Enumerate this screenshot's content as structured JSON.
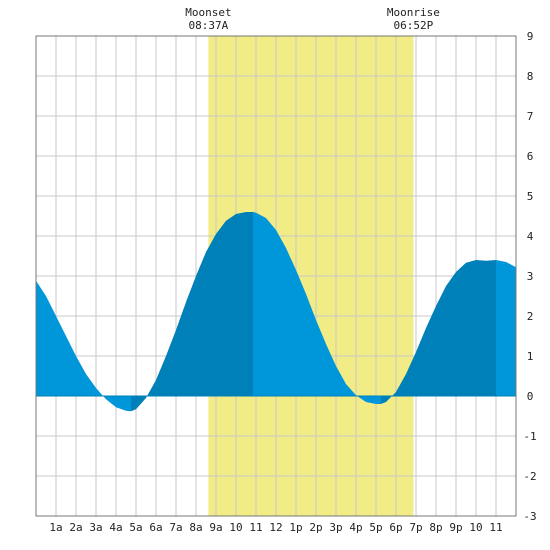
{
  "chart_data": {
    "type": "area",
    "title": "",
    "xlabel": "",
    "ylabel": "",
    "x_range_hours": [
      0,
      24
    ],
    "ylim": [
      -3,
      9
    ],
    "x_tick_labels": [
      "1a",
      "2a",
      "3a",
      "4a",
      "5a",
      "6a",
      "7a",
      "8a",
      "9a",
      "10",
      "11",
      "12",
      "1p",
      "2p",
      "3p",
      "4p",
      "5p",
      "6p",
      "7p",
      "8p",
      "9p",
      "10",
      "11"
    ],
    "y_tick_labels": [
      "-3",
      "-2",
      "-1",
      "0",
      "1",
      "2",
      "3",
      "4",
      "5",
      "6",
      "7",
      "8",
      "9"
    ],
    "grid": true,
    "moon_events": {
      "moonset": {
        "label": "Moonset",
        "time": "08:37A",
        "hour": 8.62
      },
      "moonrise": {
        "label": "Moonrise",
        "time": "06:52P",
        "hour": 18.87
      }
    },
    "extremes": [
      {
        "type": "low",
        "hour": 4.75,
        "value": -0.38
      },
      {
        "type": "high",
        "hour": 10.85,
        "value": 4.6
      },
      {
        "type": "low",
        "hour": 17.25,
        "value": -0.2
      },
      {
        "type": "high",
        "hour": 23.0,
        "value": 3.4
      }
    ],
    "series": [
      {
        "x": [
          0.0,
          0.5,
          1.0,
          1.5,
          2.0,
          2.5,
          3.0,
          3.5,
          4.0,
          4.5,
          4.75,
          5.0,
          5.5,
          6.0,
          6.5,
          7.0,
          7.5,
          8.0,
          8.5,
          9.0,
          9.5,
          10.0,
          10.5,
          10.85,
          11.0,
          11.5,
          12.0,
          12.5,
          13.0,
          13.5,
          14.0,
          14.5,
          15.0,
          15.5,
          16.0,
          16.5,
          17.0,
          17.25,
          17.5,
          18.0,
          18.5,
          19.0,
          19.5,
          20.0,
          20.5,
          21.0,
          21.5,
          22.0,
          22.5,
          23.0,
          23.5,
          24.0
        ],
        "values": [
          2.88,
          2.5,
          2.0,
          1.5,
          1.0,
          0.55,
          0.2,
          -0.08,
          -0.28,
          -0.37,
          -0.38,
          -0.33,
          -0.05,
          0.4,
          1.0,
          1.65,
          2.35,
          3.0,
          3.6,
          4.05,
          4.38,
          4.55,
          4.6,
          4.6,
          4.58,
          4.45,
          4.15,
          3.7,
          3.15,
          2.55,
          1.9,
          1.3,
          0.75,
          0.3,
          0.02,
          -0.15,
          -0.2,
          -0.2,
          -0.15,
          0.1,
          0.55,
          1.1,
          1.7,
          2.25,
          2.75,
          3.1,
          3.33,
          3.4,
          3.38,
          3.4,
          3.35,
          3.22
        ]
      }
    ],
    "colors": {
      "water": "#0096da",
      "water_dark": "#0080b8",
      "moon_band": "#f2ec86",
      "grid": "#c8c8c8",
      "border": "#777777",
      "text": "#222222"
    }
  }
}
